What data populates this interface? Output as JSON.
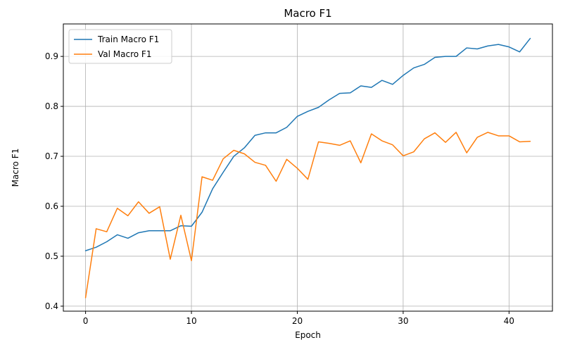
{
  "chart_data": {
    "type": "line",
    "title": "Macro F1",
    "xlabel": "Epoch",
    "ylabel": "Macro F1",
    "xlim": [
      -2.1,
      44.1
    ],
    "ylim": [
      0.39,
      0.965
    ],
    "xticks": [
      0,
      10,
      20,
      30,
      40
    ],
    "yticks": [
      0.4,
      0.5,
      0.6,
      0.7,
      0.8,
      0.9
    ],
    "grid": true,
    "legend_position": "top-left",
    "x": [
      0,
      1,
      2,
      3,
      4,
      5,
      6,
      7,
      8,
      9,
      10,
      11,
      12,
      13,
      14,
      15,
      16,
      17,
      18,
      19,
      20,
      21,
      22,
      23,
      24,
      25,
      26,
      27,
      28,
      29,
      30,
      31,
      32,
      33,
      34,
      35,
      36,
      37,
      38,
      39,
      40,
      41,
      42
    ],
    "series": [
      {
        "name": "Train Macro F1",
        "color": "#1f77b4",
        "values": [
          0.511,
          0.518,
          0.529,
          0.543,
          0.536,
          0.547,
          0.551,
          0.551,
          0.551,
          0.561,
          0.56,
          0.588,
          0.635,
          0.668,
          0.7,
          0.717,
          0.742,
          0.747,
          0.747,
          0.758,
          0.78,
          0.79,
          0.798,
          0.813,
          0.826,
          0.827,
          0.841,
          0.838,
          0.852,
          0.844,
          0.862,
          0.877,
          0.884,
          0.898,
          0.9,
          0.9,
          0.917,
          0.915,
          0.921,
          0.924,
          0.919,
          0.909,
          0.936
        ]
      },
      {
        "name": "Val Macro F1",
        "color": "#ff7f0e",
        "values": [
          0.417,
          0.555,
          0.549,
          0.596,
          0.581,
          0.609,
          0.586,
          0.599,
          0.494,
          0.582,
          0.491,
          0.659,
          0.652,
          0.695,
          0.712,
          0.705,
          0.688,
          0.682,
          0.65,
          0.694,
          0.676,
          0.654,
          0.729,
          0.726,
          0.722,
          0.731,
          0.687,
          0.745,
          0.731,
          0.723,
          0.701,
          0.709,
          0.735,
          0.747,
          0.728,
          0.748,
          0.707,
          0.738,
          0.748,
          0.741,
          0.741,
          0.729,
          0.73
        ]
      }
    ]
  }
}
